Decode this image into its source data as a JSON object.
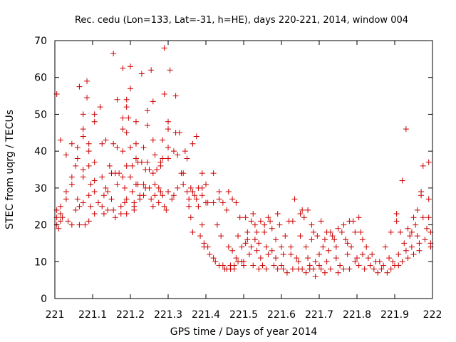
{
  "chart_data": {
    "type": "scatter",
    "title": "Rec. cedu (Lon=133, Lat=-31, h=HE), days 220-221, 2014, window 004",
    "xlabel": "GPS time / Days of year 2014",
    "ylabel": "STEC from uqrg / TECUs",
    "xlim": [
      221,
      222
    ],
    "ylim": [
      0,
      70
    ],
    "x_ticks": [
      "221",
      "221.1",
      "221.2",
      "221.3",
      "221.4",
      "221.5",
      "221.6",
      "221.7",
      "221.8",
      "221.9",
      "222"
    ],
    "y_ticks": [
      "0",
      "10",
      "20",
      "30",
      "40",
      "50",
      "60",
      "70"
    ],
    "marker": "plus",
    "color": "#cc0000",
    "grid": false,
    "points": [
      [
        221.005,
        55.5
      ],
      [
        221.005,
        24
      ],
      [
        221.005,
        22
      ],
      [
        221.005,
        20
      ],
      [
        221.01,
        19
      ],
      [
        221.015,
        43
      ],
      [
        221.015,
        25
      ],
      [
        221.015,
        23
      ],
      [
        221.015,
        21
      ],
      [
        221.02,
        22
      ],
      [
        221.03,
        39
      ],
      [
        221.03,
        29
      ],
      [
        221.03,
        27
      ],
      [
        221.035,
        21
      ],
      [
        221.045,
        42
      ],
      [
        221.045,
        33
      ],
      [
        221.045,
        31
      ],
      [
        221.045,
        20
      ],
      [
        221.055,
        36
      ],
      [
        221.055,
        24
      ],
      [
        221.06,
        41
      ],
      [
        221.06,
        38
      ],
      [
        221.06,
        27
      ],
      [
        221.065,
        57.5
      ],
      [
        221.065,
        25
      ],
      [
        221.065,
        20
      ],
      [
        221.075,
        50
      ],
      [
        221.075,
        46
      ],
      [
        221.075,
        44
      ],
      [
        221.075,
        35
      ],
      [
        221.075,
        33
      ],
      [
        221.075,
        26
      ],
      [
        221.08,
        20
      ],
      [
        221.085,
        59
      ],
      [
        221.085,
        54.5
      ],
      [
        221.09,
        42
      ],
      [
        221.09,
        40
      ],
      [
        221.09,
        36
      ],
      [
        221.09,
        28
      ],
      [
        221.09,
        21
      ],
      [
        221.095,
        31
      ],
      [
        221.095,
        25
      ],
      [
        221.105,
        50
      ],
      [
        221.105,
        48
      ],
      [
        221.105,
        37
      ],
      [
        221.105,
        32
      ],
      [
        221.105,
        29
      ],
      [
        221.105,
        23
      ],
      [
        221.115,
        26
      ],
      [
        221.12,
        52
      ],
      [
        221.125,
        42
      ],
      [
        221.125,
        33
      ],
      [
        221.125,
        25
      ],
      [
        221.13,
        28
      ],
      [
        221.13,
        23
      ],
      [
        221.135,
        43
      ],
      [
        221.135,
        30
      ],
      [
        221.14,
        29
      ],
      [
        221.14,
        24
      ],
      [
        221.145,
        36
      ],
      [
        221.15,
        34
      ],
      [
        221.15,
        27
      ],
      [
        221.155,
        66.5
      ],
      [
        221.155,
        42
      ],
      [
        221.155,
        24
      ],
      [
        221.16,
        34
      ],
      [
        221.16,
        22
      ],
      [
        221.165,
        54
      ],
      [
        221.165,
        41
      ],
      [
        221.165,
        31
      ],
      [
        221.17,
        34
      ],
      [
        221.175,
        25
      ],
      [
        221.175,
        23
      ],
      [
        221.18,
        62.5
      ],
      [
        221.18,
        49
      ],
      [
        221.18,
        46
      ],
      [
        221.18,
        40
      ],
      [
        221.18,
        33
      ],
      [
        221.185,
        30
      ],
      [
        221.185,
        26
      ],
      [
        221.19,
        54
      ],
      [
        221.19,
        52
      ],
      [
        221.19,
        45
      ],
      [
        221.19,
        36
      ],
      [
        221.19,
        27
      ],
      [
        221.19,
        23
      ],
      [
        221.195,
        49
      ],
      [
        221.2,
        63
      ],
      [
        221.2,
        57
      ],
      [
        221.2,
        41
      ],
      [
        221.2,
        33
      ],
      [
        221.205,
        36
      ],
      [
        221.205,
        29
      ],
      [
        221.21,
        26
      ],
      [
        221.21,
        25
      ],
      [
        221.21,
        24
      ],
      [
        221.215,
        48
      ],
      [
        221.215,
        42
      ],
      [
        221.215,
        38
      ],
      [
        221.215,
        31
      ],
      [
        221.22,
        37
      ],
      [
        221.22,
        31
      ],
      [
        221.225,
        28
      ],
      [
        221.225,
        27
      ],
      [
        221.23,
        61
      ],
      [
        221.23,
        37
      ],
      [
        221.235,
        41
      ],
      [
        221.235,
        31
      ],
      [
        221.235,
        28
      ],
      [
        221.24,
        35
      ],
      [
        221.24,
        30
      ],
      [
        221.245,
        51
      ],
      [
        221.245,
        47
      ],
      [
        221.245,
        37
      ],
      [
        221.25,
        35
      ],
      [
        221.25,
        30
      ],
      [
        221.255,
        62
      ],
      [
        221.255,
        27
      ],
      [
        221.26,
        53.5
      ],
      [
        221.26,
        43
      ],
      [
        221.26,
        34
      ],
      [
        221.26,
        25
      ],
      [
        221.265,
        39
      ],
      [
        221.265,
        31
      ],
      [
        221.265,
        28
      ],
      [
        221.27,
        35
      ],
      [
        221.275,
        30
      ],
      [
        221.275,
        26
      ],
      [
        221.28,
        37
      ],
      [
        221.28,
        36
      ],
      [
        221.28,
        29
      ],
      [
        221.285,
        43
      ],
      [
        221.285,
        38
      ],
      [
        221.285,
        28
      ],
      [
        221.29,
        68
      ],
      [
        221.29,
        55.5
      ],
      [
        221.29,
        25
      ],
      [
        221.295,
        24
      ],
      [
        221.3,
        48
      ],
      [
        221.3,
        46
      ],
      [
        221.3,
        41
      ],
      [
        221.3,
        38
      ],
      [
        221.3,
        29
      ],
      [
        221.305,
        62
      ],
      [
        221.31,
        27
      ],
      [
        221.315,
        40
      ],
      [
        221.315,
        28
      ],
      [
        221.32,
        55
      ],
      [
        221.32,
        45
      ],
      [
        221.325,
        39
      ],
      [
        221.325,
        30
      ],
      [
        221.33,
        45
      ],
      [
        221.335,
        34
      ],
      [
        221.34,
        34
      ],
      [
        221.34,
        31
      ],
      [
        221.345,
        40
      ],
      [
        221.35,
        38
      ],
      [
        221.35,
        29
      ],
      [
        221.355,
        27
      ],
      [
        221.355,
        25
      ],
      [
        221.36,
        30
      ],
      [
        221.36,
        22
      ],
      [
        221.365,
        42
      ],
      [
        221.365,
        29
      ],
      [
        221.365,
        18
      ],
      [
        221.37,
        28
      ],
      [
        221.375,
        44
      ],
      [
        221.375,
        27
      ],
      [
        221.38,
        30
      ],
      [
        221.38,
        25
      ],
      [
        221.385,
        17
      ],
      [
        221.39,
        34
      ],
      [
        221.39,
        30
      ],
      [
        221.39,
        28
      ],
      [
        221.39,
        20
      ],
      [
        221.395,
        15
      ],
      [
        221.395,
        14
      ],
      [
        221.4,
        31
      ],
      [
        221.4,
        26
      ],
      [
        221.405,
        26
      ],
      [
        221.405,
        14
      ],
      [
        221.41,
        12
      ],
      [
        221.42,
        34
      ],
      [
        221.42,
        26
      ],
      [
        221.42,
        11
      ],
      [
        221.425,
        10
      ],
      [
        221.43,
        20
      ],
      [
        221.435,
        29
      ],
      [
        221.435,
        27
      ],
      [
        221.435,
        9
      ],
      [
        221.44,
        17
      ],
      [
        221.445,
        26
      ],
      [
        221.445,
        9
      ],
      [
        221.45,
        8
      ],
      [
        221.455,
        24
      ],
      [
        221.455,
        8
      ],
      [
        221.46,
        29
      ],
      [
        221.46,
        14
      ],
      [
        221.465,
        9
      ],
      [
        221.465,
        8
      ],
      [
        221.47,
        27
      ],
      [
        221.47,
        13
      ],
      [
        221.475,
        9
      ],
      [
        221.475,
        8
      ],
      [
        221.48,
        26
      ],
      [
        221.48,
        11
      ],
      [
        221.485,
        17
      ],
      [
        221.485,
        10
      ],
      [
        221.49,
        22
      ],
      [
        221.495,
        14
      ],
      [
        221.495,
        10
      ],
      [
        221.5,
        10
      ],
      [
        221.5,
        9
      ],
      [
        221.505,
        22
      ],
      [
        221.505,
        15
      ],
      [
        221.51,
        18
      ],
      [
        221.51,
        16
      ],
      [
        221.515,
        12
      ],
      [
        221.52,
        21
      ],
      [
        221.52,
        14
      ],
      [
        221.525,
        23
      ],
      [
        221.525,
        9
      ],
      [
        221.53,
        20
      ],
      [
        221.53,
        16
      ],
      [
        221.535,
        18
      ],
      [
        221.535,
        13
      ],
      [
        221.54,
        15
      ],
      [
        221.54,
        8
      ],
      [
        221.545,
        21
      ],
      [
        221.545,
        11
      ],
      [
        221.55,
        9
      ],
      [
        221.555,
        20
      ],
      [
        221.555,
        18
      ],
      [
        221.56,
        14
      ],
      [
        221.56,
        8
      ],
      [
        221.565,
        22
      ],
      [
        221.565,
        12
      ],
      [
        221.57,
        21
      ],
      [
        221.575,
        19
      ],
      [
        221.575,
        13
      ],
      [
        221.58,
        9
      ],
      [
        221.585,
        16
      ],
      [
        221.585,
        11
      ],
      [
        221.59,
        23
      ],
      [
        221.59,
        8
      ],
      [
        221.595,
        20
      ],
      [
        221.6,
        14
      ],
      [
        221.6,
        9
      ],
      [
        221.605,
        12
      ],
      [
        221.605,
        8
      ],
      [
        221.61,
        17
      ],
      [
        221.615,
        7
      ],
      [
        221.62,
        21
      ],
      [
        221.625,
        14
      ],
      [
        221.625,
        12
      ],
      [
        221.63,
        21
      ],
      [
        221.63,
        8
      ],
      [
        221.635,
        27
      ],
      [
        221.64,
        11
      ],
      [
        221.645,
        10
      ],
      [
        221.645,
        8
      ],
      [
        221.65,
        23
      ],
      [
        221.65,
        17
      ],
      [
        221.655,
        24
      ],
      [
        221.655,
        8
      ],
      [
        221.66,
        22
      ],
      [
        221.665,
        14
      ],
      [
        221.665,
        7
      ],
      [
        221.67,
        24
      ],
      [
        221.67,
        11
      ],
      [
        221.675,
        9
      ],
      [
        221.675,
        8
      ],
      [
        221.68,
        20
      ],
      [
        221.68,
        16
      ],
      [
        221.685,
        18
      ],
      [
        221.685,
        8
      ],
      [
        221.69,
        10
      ],
      [
        221.69,
        6
      ],
      [
        221.695,
        17
      ],
      [
        221.7,
        12
      ],
      [
        221.7,
        9
      ],
      [
        221.705,
        21
      ],
      [
        221.705,
        8
      ],
      [
        221.71,
        14
      ],
      [
        221.715,
        16
      ],
      [
        221.715,
        7
      ],
      [
        221.72,
        18
      ],
      [
        221.72,
        10
      ],
      [
        221.725,
        13
      ],
      [
        221.73,
        18
      ],
      [
        221.73,
        8
      ],
      [
        221.735,
        17
      ],
      [
        221.74,
        16
      ],
      [
        221.745,
        14
      ],
      [
        221.745,
        11
      ],
      [
        221.75,
        19
      ],
      [
        221.75,
        7
      ],
      [
        221.755,
        9
      ],
      [
        221.76,
        18
      ],
      [
        221.765,
        20
      ],
      [
        221.765,
        8
      ],
      [
        221.77,
        16
      ],
      [
        221.775,
        15
      ],
      [
        221.775,
        12
      ],
      [
        221.78,
        21
      ],
      [
        221.78,
        8
      ],
      [
        221.785,
        14
      ],
      [
        221.79,
        21
      ],
      [
        221.795,
        18
      ],
      [
        221.795,
        10
      ],
      [
        221.8,
        11
      ],
      [
        221.805,
        22
      ],
      [
        221.805,
        9
      ],
      [
        221.81,
        18
      ],
      [
        221.815,
        16
      ],
      [
        221.815,
        12
      ],
      [
        221.82,
        8
      ],
      [
        221.825,
        14
      ],
      [
        221.83,
        11
      ],
      [
        221.835,
        9
      ],
      [
        221.84,
        12
      ],
      [
        221.845,
        8
      ],
      [
        221.85,
        10
      ],
      [
        221.855,
        7
      ],
      [
        221.86,
        10
      ],
      [
        221.865,
        8
      ],
      [
        221.87,
        9
      ],
      [
        221.875,
        14
      ],
      [
        221.88,
        7
      ],
      [
        221.885,
        11
      ],
      [
        221.89,
        18
      ],
      [
        221.89,
        8
      ],
      [
        221.895,
        10
      ],
      [
        221.9,
        9
      ],
      [
        221.905,
        23
      ],
      [
        221.905,
        21
      ],
      [
        221.91,
        12
      ],
      [
        221.91,
        9
      ],
      [
        221.915,
        18
      ],
      [
        221.92,
        32
      ],
      [
        221.92,
        10
      ],
      [
        221.925,
        15
      ],
      [
        221.93,
        46
      ],
      [
        221.93,
        13
      ],
      [
        221.935,
        19
      ],
      [
        221.935,
        11
      ],
      [
        221.94,
        17
      ],
      [
        221.945,
        18
      ],
      [
        221.945,
        14
      ],
      [
        221.95,
        22
      ],
      [
        221.95,
        12
      ],
      [
        221.955,
        20
      ],
      [
        221.96,
        24
      ],
      [
        221.96,
        17
      ],
      [
        221.965,
        15
      ],
      [
        221.965,
        13
      ],
      [
        221.97,
        29
      ],
      [
        221.97,
        28
      ],
      [
        221.975,
        36
      ],
      [
        221.975,
        22
      ],
      [
        221.98,
        16
      ],
      [
        221.985,
        19
      ],
      [
        221.99,
        37
      ],
      [
        221.99,
        27
      ],
      [
        221.99,
        22
      ],
      [
        221.995,
        18
      ],
      [
        221.995,
        15
      ],
      [
        221.995,
        14
      ]
    ]
  }
}
